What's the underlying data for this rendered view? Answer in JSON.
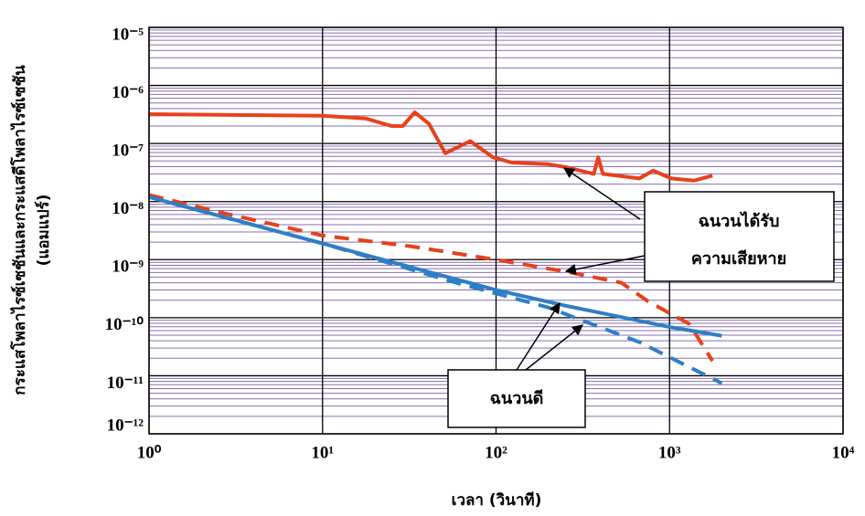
{
  "chart_data": {
    "type": "line",
    "x_label": "เวลา (วินาที)",
    "y_label": [
      "กระแสโพลาไรซ์เซชันและกระแสดีโพลาไรซ์เซชัน",
      "(แอมแปร์)"
    ],
    "log_x": true,
    "log_y": true,
    "grid": true,
    "y_minor_grid": true,
    "xlim": [
      1,
      10000
    ],
    "xticks": [
      {
        "value": 1,
        "label": "10⁰"
      },
      {
        "value": 10,
        "label": "10¹"
      },
      {
        "value": 100,
        "label": "10²"
      },
      {
        "value": 1000,
        "label": "10³"
      },
      {
        "value": 10000,
        "label": "10⁴"
      }
    ],
    "ylim": [
      1e-12,
      1e-05
    ],
    "yticks": [
      {
        "value": 1e-12,
        "label": "10⁻¹²"
      },
      {
        "value": 1e-11,
        "label": "10⁻¹¹"
      },
      {
        "value": 1e-10,
        "label": "10⁻¹⁰"
      },
      {
        "value": 1e-09,
        "label": "10⁻⁹"
      },
      {
        "value": 1e-08,
        "label": "10⁻⁸"
      },
      {
        "value": 1e-07,
        "label": "10⁻⁷"
      },
      {
        "value": 1e-06,
        "label": "10⁻⁶"
      },
      {
        "value": 1e-05,
        "label": "10⁻⁵"
      }
    ],
    "series": [
      {
        "color": "#e8401c",
        "style": "solid",
        "x": [
          1,
          10,
          17.7,
          25,
          29,
          34,
          41,
          51,
          71,
          96,
          123,
          200,
          254,
          366,
          388,
          413,
          670,
          804,
          1025,
          1387,
          1767
        ],
        "values": [
          3.2e-07,
          3e-07,
          2.7e-07,
          2e-07,
          2e-07,
          3.45e-07,
          2.2e-07,
          6.8e-08,
          1.1e-07,
          5.8e-08,
          4.7e-08,
          4.4e-08,
          3.9e-08,
          3e-08,
          5.8e-08,
          3e-08,
          2.5e-08,
          3.4e-08,
          2.5e-08,
          2.3e-08,
          2.8e-08
        ]
      },
      {
        "color": "#e8401c",
        "style": "dashed",
        "x": [
          1,
          2.9,
          10,
          32,
          100,
          254,
          527,
          754,
          1300,
          1767
        ],
        "values": [
          1.3e-08,
          6e-09,
          2.6e-09,
          1.7e-09,
          1e-09,
          6.2e-10,
          4e-10,
          1.9e-10,
          7.8e-11,
          1.8e-11
        ]
      },
      {
        "color": "#2e7ec6",
        "style": "solid",
        "x": [
          1,
          10,
          100,
          254,
          1000,
          2000
        ],
        "values": [
          1.2e-08,
          1.9e-09,
          3e-10,
          1.6e-10,
          6.9e-11,
          4.9e-11
        ]
      },
      {
        "color": "#2e7ec6",
        "style": "dashed",
        "x": [
          1,
          10,
          59,
          200,
          670,
          2000
        ],
        "values": [
          1.2e-08,
          1.9e-09,
          4e-10,
          1.5e-10,
          3.8e-11,
          7.4e-12
        ]
      }
    ],
    "annotations": [
      {
        "lines": [
          "ฉนวนได้รับ",
          "ความเสียหาย"
        ]
      },
      {
        "lines": [
          "ฉนวนดี"
        ]
      }
    ]
  }
}
